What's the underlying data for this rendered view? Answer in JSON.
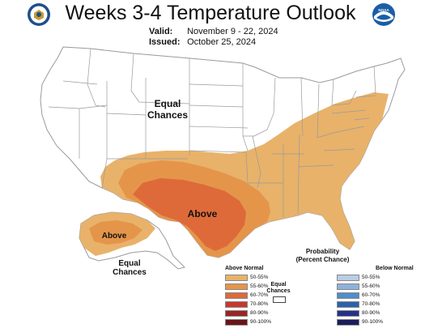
{
  "title": "Weeks 3-4 Temperature Outlook",
  "valid_label": "Valid:",
  "valid_dates": "November 9 - 22, 2024",
  "issued_label": "Issued:",
  "issued_date": "October 25, 2024",
  "map_labels": {
    "equal_chances_conus": [
      "Equal",
      "Chances"
    ],
    "above_conus": "Above",
    "above_alaska": "Above",
    "equal_chances_alaska": [
      "Equal",
      "Chances"
    ]
  },
  "legend": {
    "title": [
      "Probability",
      "(Percent Chance)"
    ],
    "above_header": "Above Normal",
    "below_header": "Below Normal",
    "equal_label": [
      "Equal",
      "Chances"
    ],
    "above": [
      {
        "label": "50-55%",
        "color": "#e8b26a"
      },
      {
        "label": "55-60%",
        "color": "#e5954a"
      },
      {
        "label": "60-70%",
        "color": "#de6a3a"
      },
      {
        "label": "70-80%",
        "color": "#c8392c"
      },
      {
        "label": "80-90%",
        "color": "#9c2426"
      },
      {
        "label": "90-100%",
        "color": "#6a1418"
      }
    ],
    "below": [
      {
        "label": "50-55%",
        "color": "#b9cde6"
      },
      {
        "label": "55-60%",
        "color": "#8eb1dc"
      },
      {
        "label": "60-70%",
        "color": "#4f8ecb"
      },
      {
        "label": "70-80%",
        "color": "#2a62ad"
      },
      {
        "label": "80-90%",
        "color": "#25318a"
      },
      {
        "label": "90-100%",
        "color": "#1b1c5c"
      }
    ]
  },
  "logos": {
    "left": "commerce-seal-icon",
    "right": "noaa-logo-icon",
    "noaa_text": "NOAA"
  },
  "colors": {
    "band_50_55": "#e8b26a",
    "band_55_60": "#e5954a",
    "band_60_70": "#de6a3a",
    "borders": "#9a9a9a"
  }
}
